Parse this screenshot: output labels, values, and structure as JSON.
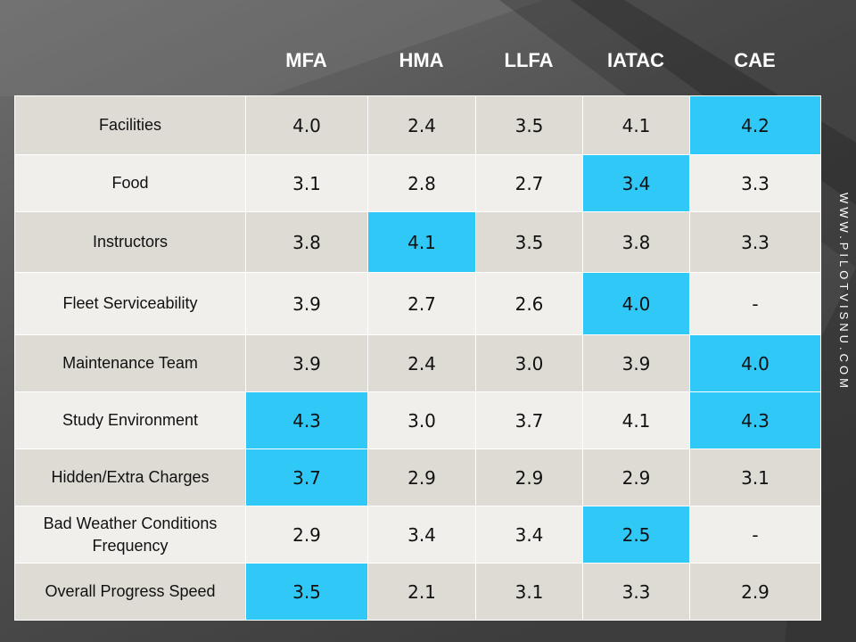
{
  "columns": [
    "MFA",
    "HMA",
    "LLFA",
    "IATAC",
    "CAE"
  ],
  "rows": [
    {
      "label": "Facilities",
      "values": [
        "4.0",
        "2.4",
        "3.5",
        "4.1",
        "4.2"
      ],
      "highlight": [
        4
      ]
    },
    {
      "label": "Food",
      "values": [
        "3.1",
        "2.8",
        "2.7",
        "3.4",
        "3.3"
      ],
      "highlight": [
        3
      ]
    },
    {
      "label": "Instructors",
      "values": [
        "3.8",
        "4.1",
        "3.5",
        "3.8",
        "3.3"
      ],
      "highlight": [
        1
      ]
    },
    {
      "label": "Fleet Serviceability",
      "values": [
        "3.9",
        "2.7",
        "2.6",
        "4.0",
        "-"
      ],
      "highlight": [
        3
      ]
    },
    {
      "label": "Maintenance Team",
      "values": [
        "3.9",
        "2.4",
        "3.0",
        "3.9",
        "4.0"
      ],
      "highlight": [
        4
      ]
    },
    {
      "label": "Study Environment",
      "values": [
        "4.3",
        "3.0",
        "3.7",
        "4.1",
        "4.3"
      ],
      "highlight": [
        0,
        4
      ]
    },
    {
      "label": "Hidden/Extra Charges",
      "values": [
        "3.7",
        "2.9",
        "2.9",
        "2.9",
        "3.1"
      ],
      "highlight": [
        0
      ]
    },
    {
      "label": "Bad Weather Conditions Frequency",
      "values": [
        "2.9",
        "3.4",
        "3.4",
        "2.5",
        "-"
      ],
      "highlight": [
        3
      ]
    },
    {
      "label": "Overall Progress Speed",
      "values": [
        "3.5",
        "2.1",
        "3.1",
        "3.3",
        "2.9"
      ],
      "highlight": [
        0
      ]
    }
  ],
  "watermark": "WWW.PILOTVISNU.COM",
  "colors": {
    "highlight": "#2fc8f7",
    "row_odd": "#dedbd4",
    "row_even": "#f0efeb",
    "header_text": "#ffffff"
  }
}
